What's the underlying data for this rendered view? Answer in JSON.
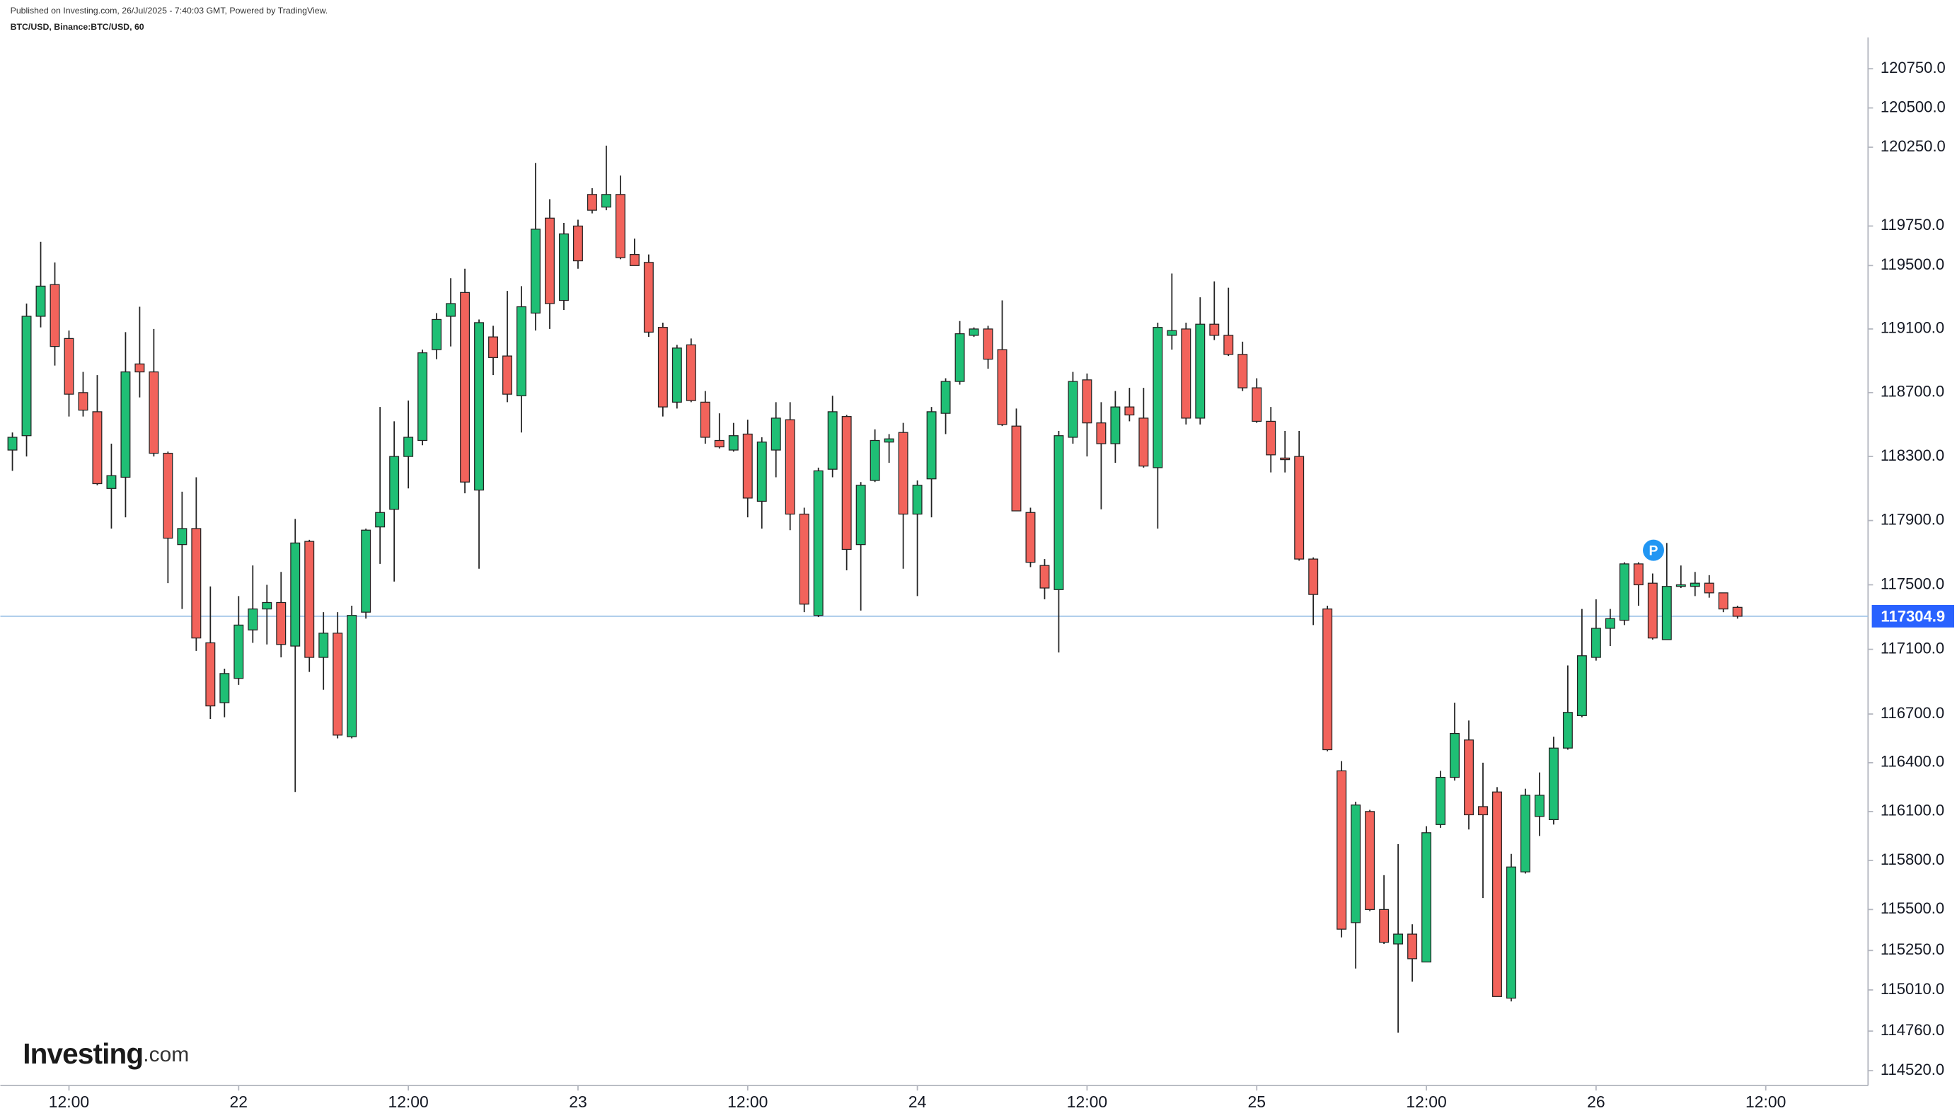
{
  "chart_data": {
    "type": "candlestick",
    "published": "Published on Investing.com, 26/Jul/2025 - 7:40:03 GMT, Powered by TradingView.",
    "title": "BTC/USD, Binance:BTC/USD, 60",
    "brand": "Investing",
    "brand_suffix": ".com",
    "marker": "P",
    "log_scale": true,
    "grid": false,
    "up_color": "#1fbf75",
    "down_color": "#f2635b",
    "border_color": "#222222",
    "last_price_color": "#2962ff",
    "ylim": [
      114430,
      120950
    ],
    "yticks": [
      {
        "value": 120750,
        "label": "120750.0"
      },
      {
        "value": 120500,
        "label": "120500.0"
      },
      {
        "value": 120250,
        "label": "120250.0"
      },
      {
        "value": 119750,
        "label": "119750.0"
      },
      {
        "value": 119500,
        "label": "119500.0"
      },
      {
        "value": 119100,
        "label": "119100.0"
      },
      {
        "value": 118700,
        "label": "118700.0"
      },
      {
        "value": 118300,
        "label": "118300.0"
      },
      {
        "value": 117900,
        "label": "117900.0"
      },
      {
        "value": 117500,
        "label": "117500.0"
      },
      {
        "value": 117100,
        "label": "117100.0"
      },
      {
        "value": 116700,
        "label": "116700.0"
      },
      {
        "value": 116400,
        "label": "116400.0"
      },
      {
        "value": 116100,
        "label": "116100.0"
      },
      {
        "value": 115800,
        "label": "115800.0"
      },
      {
        "value": 115500,
        "label": "115500.0"
      },
      {
        "value": 115250,
        "label": "115250.0"
      },
      {
        "value": 115010,
        "label": "115010.0"
      },
      {
        "value": 114760,
        "label": "114760.0"
      },
      {
        "value": 114520,
        "label": "114520.0"
      }
    ],
    "last_price": 117304.9,
    "categories": [
      null,
      null,
      null,
      null,
      "12:00",
      null,
      null,
      null,
      null,
      null,
      null,
      null,
      null,
      null,
      null,
      null,
      "22",
      null,
      null,
      null,
      null,
      null,
      null,
      null,
      null,
      null,
      null,
      null,
      "12:00",
      null,
      null,
      null,
      null,
      null,
      null,
      null,
      null,
      null,
      null,
      null,
      "23",
      null,
      null,
      null,
      null,
      null,
      null,
      null,
      null,
      null,
      null,
      null,
      "12:00",
      null,
      null,
      null,
      null,
      null,
      null,
      null,
      null,
      null,
      null,
      null,
      "24",
      null,
      null,
      null,
      null,
      null,
      null,
      null,
      null,
      null,
      null,
      null,
      "12:00",
      null,
      null,
      null,
      null,
      null,
      null,
      null,
      null,
      null,
      null,
      null,
      "25",
      null,
      null,
      null,
      null,
      null,
      null,
      null,
      null,
      null,
      null,
      null,
      "12:00",
      null,
      null,
      null,
      null,
      null,
      null,
      null,
      null,
      null,
      null,
      null,
      "26",
      null,
      null,
      null,
      null,
      null,
      null,
      null,
      null,
      null,
      null,
      null,
      "12:00",
      null,
      null,
      null,
      null,
      null,
      null,
      null
    ],
    "open": [
      118340,
      118430,
      119180,
      119380,
      119040,
      118700,
      118580,
      118100,
      118170,
      118880,
      118830,
      118320,
      117750,
      117850,
      117140,
      116770,
      116920,
      117220,
      117350,
      117390,
      117120,
      117770,
      117050,
      117200,
      116560,
      117330,
      117860,
      117970,
      118300,
      118400,
      118970,
      119180,
      119330,
      118090,
      119050,
      118930,
      118680,
      119200,
      119800,
      119280,
      119750,
      119950,
      119870,
      119950,
      119570,
      119520,
      119110,
      118640,
      119000,
      118640,
      118400,
      118340,
      118440,
      118020,
      118340,
      118530,
      117940,
      117310,
      118220,
      118550,
      117750,
      118150,
      118390,
      118450,
      117940,
      118160,
      118570,
      118770,
      119060,
      119100,
      118970,
      118490,
      117950,
      117620,
      117470,
      118420,
      118780,
      118510,
      118380,
      118610,
      118540,
      118230,
      119060,
      119100,
      118540,
      119130,
      119060,
      118940,
      118730,
      118520,
      118290,
      118300,
      117660,
      117350,
      116350,
      115420,
      116100,
      115500,
      115290,
      115350,
      115180,
      116020,
      116310,
      116540,
      116130,
      116220,
      114960,
      115730,
      116070,
      116050,
      116490,
      116690,
      117050,
      117230,
      117280,
      117630,
      117510,
      117160,
      117490,
      117490,
      117510,
      117450,
      117360,
      null,
      null,
      null,
      null,
      null,
      null,
      null,
      null,
      null
    ],
    "high": [
      118450,
      119260,
      119650,
      119520,
      119090,
      118830,
      118810,
      118380,
      119080,
      119240,
      119100,
      118330,
      118080,
      118170,
      117490,
      116980,
      117430,
      117620,
      117500,
      117580,
      117910,
      117780,
      117330,
      117330,
      117370,
      117850,
      118610,
      118520,
      118650,
      118970,
      119200,
      119420,
      119480,
      119160,
      119120,
      119340,
      119370,
      120150,
      119920,
      119770,
      119790,
      119990,
      120260,
      120070,
      119670,
      119570,
      119140,
      119000,
      119040,
      118710,
      118570,
      118510,
      118530,
      118420,
      118640,
      118640,
      117980,
      118230,
      118680,
      118560,
      118140,
      118470,
      118440,
      118510,
      118150,
      118610,
      118790,
      119150,
      119110,
      119120,
      119280,
      118600,
      117980,
      117660,
      118460,
      118830,
      118820,
      118640,
      118710,
      118730,
      118730,
      119140,
      119450,
      119140,
      119300,
      119400,
      119360,
      119020,
      118790,
      118610,
      118460,
      118460,
      117670,
      117370,
      116410,
      116160,
      116110,
      115710,
      115900,
      115410,
      116010,
      116350,
      116770,
      116660,
      116400,
      116250,
      115840,
      116240,
      116340,
      116560,
      117000,
      117350,
      117410,
      117350,
      117640,
      117640,
      117570,
      117760,
      117620,
      117580,
      117560,
      117450,
      117370,
      null,
      null,
      null,
      null,
      null,
      null,
      null,
      null,
      null
    ],
    "low": [
      118210,
      118300,
      119110,
      118870,
      118550,
      118550,
      118120,
      117850,
      117920,
      118670,
      118300,
      117510,
      117350,
      117090,
      116670,
      116680,
      116880,
      117140,
      117130,
      117050,
      116220,
      116960,
      116850,
      116550,
      116550,
      117290,
      117630,
      117520,
      118100,
      118370,
      118910,
      118990,
      118070,
      117600,
      118810,
      118640,
      118450,
      119090,
      119100,
      119220,
      119480,
      119830,
      119850,
      119540,
      119500,
      119050,
      118550,
      118600,
      118640,
      118380,
      118350,
      118330,
      117920,
      117850,
      118170,
      117840,
      117330,
      117300,
      118170,
      117590,
      117340,
      118140,
      118260,
      117600,
      117430,
      117920,
      118440,
      118750,
      119050,
      118850,
      118490,
      117960,
      117610,
      117410,
      117080,
      118380,
      118300,
      117970,
      118260,
      118520,
      118230,
      117850,
      118970,
      118500,
      118500,
      119030,
      118930,
      118710,
      118510,
      118200,
      118200,
      117650,
      117250,
      116470,
      115330,
      115140,
      115490,
      115290,
      114750,
      115060,
      115180,
      116000,
      116290,
      115990,
      115570,
      114970,
      114940,
      115720,
      115950,
      116020,
      116480,
      116680,
      117030,
      117120,
      117250,
      117370,
      117160,
      117160,
      117480,
      117430,
      117420,
      117330,
      117290,
      null,
      null,
      null,
      null,
      null,
      null,
      null,
      null,
      null
    ],
    "close": [
      118420,
      119180,
      119370,
      118990,
      118690,
      118590,
      118130,
      118180,
      118830,
      118830,
      118320,
      117790,
      117850,
      117170,
      116750,
      116950,
      117250,
      117350,
      117390,
      117130,
      117760,
      117050,
      117200,
      116570,
      117310,
      117840,
      117950,
      118300,
      118420,
      118950,
      119160,
      119260,
      118140,
      119140,
      118920,
      118690,
      119240,
      119730,
      119260,
      119700,
      119530,
      119850,
      119950,
      119550,
      119500,
      119080,
      118610,
      118980,
      118650,
      118420,
      118360,
      118430,
      118040,
      118390,
      118540,
      117940,
      117380,
      118210,
      118580,
      117720,
      118120,
      118400,
      118410,
      117940,
      118120,
      118580,
      118770,
      119070,
      119100,
      118910,
      118500,
      117960,
      117640,
      117480,
      118430,
      118770,
      118510,
      118380,
      118610,
      118560,
      118240,
      119110,
      119090,
      118540,
      119130,
      119060,
      118940,
      118730,
      118520,
      118310,
      118280,
      117660,
      117440,
      116480,
      115380,
      116140,
      115500,
      115300,
      115350,
      115200,
      115970,
      116310,
      116580,
      116080,
      116080,
      114970,
      115760,
      116200,
      116200,
      116490,
      116710,
      117060,
      117230,
      117290,
      117630,
      117500,
      117170,
      117490,
      117500,
      117510,
      117450,
      117350,
      117304.9,
      null,
      null,
      null,
      null,
      null,
      null,
      null,
      null,
      null
    ]
  }
}
